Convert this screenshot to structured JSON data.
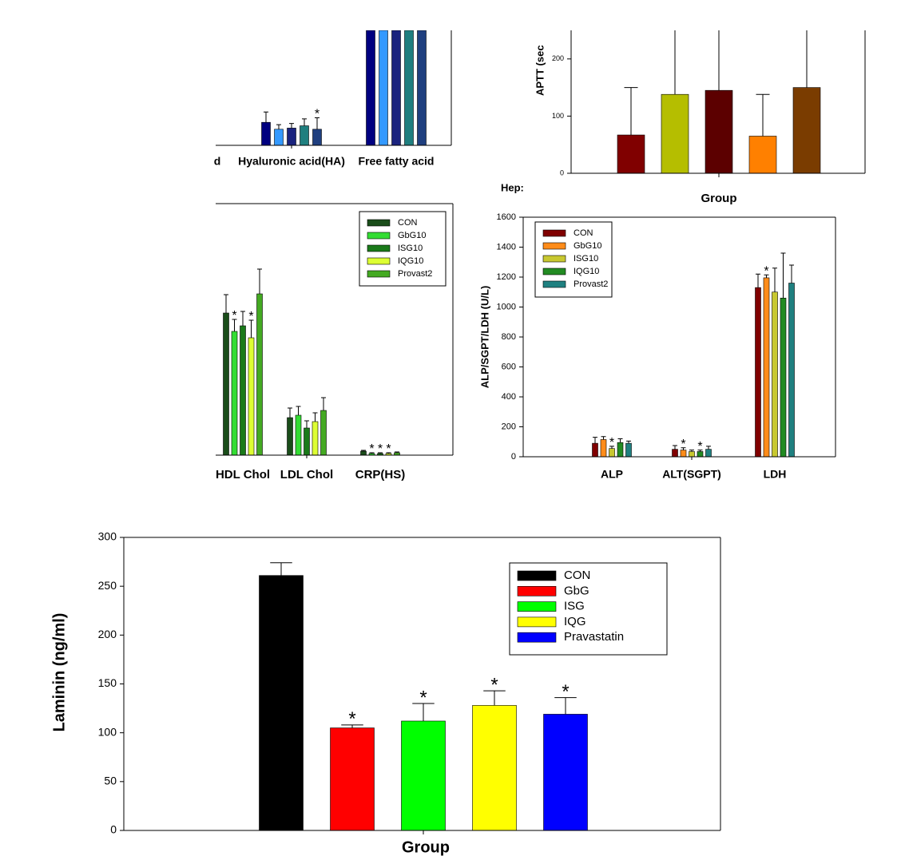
{
  "chart_data": [
    {
      "type": "bar",
      "categories": [
        "d",
        "Hyaluronic acid(HA)",
        "Free fatty acid"
      ],
      "ylim": [
        0,
        100
      ],
      "series": [
        {
          "color": "#000080",
          "values": [
            null,
            20,
            100
          ],
          "errors": [
            null,
            9,
            null
          ]
        },
        {
          "color": "#3399ff",
          "values": [
            null,
            14,
            100
          ],
          "errors": [
            null,
            4,
            null
          ]
        },
        {
          "color": "#1a237e",
          "values": [
            null,
            15,
            100
          ],
          "errors": [
            null,
            4,
            null
          ]
        },
        {
          "color": "#1f7f7f",
          "values": [
            null,
            17,
            100
          ],
          "errors": [
            null,
            6,
            null
          ]
        },
        {
          "color": "#1f3f7f",
          "values": [
            null,
            14,
            100
          ],
          "errors": [
            null,
            10,
            null
          ],
          "labels": [
            null,
            "*",
            null
          ]
        }
      ]
    },
    {
      "type": "bar",
      "categories": [
        null
      ],
      "y_label": "APTT (sec",
      "x_label": "Group",
      "caption": "Hep:",
      "ylim": [
        0,
        250
      ],
      "yticks": [
        0,
        100,
        200
      ],
      "series": [
        {
          "color": "#800000",
          "values": [
            67
          ],
          "errors": [
            83
          ]
        },
        {
          "color": "#b5be00",
          "values": [
            138
          ],
          "errors": [
            140
          ]
        },
        {
          "color": "#5c0000",
          "values": [
            145
          ],
          "errors": [
            130
          ]
        },
        {
          "color": "#ff8000",
          "values": [
            65
          ],
          "errors": [
            73
          ]
        },
        {
          "color": "#7a3c00",
          "values": [
            150
          ],
          "errors": [
            120
          ]
        }
      ]
    },
    {
      "type": "bar",
      "categories": [
        "HDL Chol",
        "LDL Chol",
        "CRP(HS)"
      ],
      "ylim": [
        0,
        315
      ],
      "legend": true,
      "series": [
        {
          "name": "CON",
          "color": "#1a4d1a",
          "values": [
            178,
            47,
            5
          ],
          "errors": [
            23,
            12,
            1
          ]
        },
        {
          "name": "GbG10",
          "color": "#33dd33",
          "values": [
            155,
            50,
            2
          ],
          "errors": [
            15,
            11,
            1
          ],
          "labels": [
            "*",
            null,
            "*"
          ]
        },
        {
          "name": "ISG10",
          "color": "#1a7a1a",
          "values": [
            162,
            34,
            2
          ],
          "errors": [
            18,
            9,
            1
          ],
          "labels": [
            null,
            null,
            "*"
          ]
        },
        {
          "name": "IQG10",
          "color": "#ddff33",
          "values": [
            147,
            42,
            2
          ],
          "errors": [
            22,
            11,
            1
          ],
          "labels": [
            "*",
            null,
            "*"
          ]
        },
        {
          "name": "Provast2",
          "color": "#44aa22",
          "values": [
            202,
            56,
            3
          ],
          "errors": [
            31,
            16,
            1
          ]
        }
      ]
    },
    {
      "type": "bar",
      "categories": [
        "ALP",
        "ALT(SGPT)",
        "LDH"
      ],
      "y_label": "ALP/SGPT/LDH (U/L)",
      "legend": true,
      "ylim": [
        0,
        1600
      ],
      "yticks": [
        0,
        200,
        400,
        600,
        800,
        1000,
        1200,
        1400,
        1600
      ],
      "series": [
        {
          "name": "CON",
          "color": "#800000",
          "values": [
            90,
            50,
            1130
          ],
          "errors": [
            40,
            25,
            90
          ]
        },
        {
          "name": "GbG10",
          "color": "#ff8c1a",
          "values": [
            115,
            45,
            1195
          ],
          "errors": [
            20,
            15,
            20
          ],
          "labels": [
            null,
            "*",
            "*"
          ]
        },
        {
          "name": "ISG10",
          "color": "#c8c830",
          "values": [
            55,
            35,
            1100
          ],
          "errors": [
            15,
            10,
            160
          ],
          "labels": [
            "*",
            null,
            null
          ]
        },
        {
          "name": "IQG10",
          "color": "#228b22",
          "values": [
            95,
            35,
            1060
          ],
          "errors": [
            25,
            10,
            300
          ],
          "labels": [
            null,
            "*",
            null
          ]
        },
        {
          "name": "Provast2",
          "color": "#1f8080",
          "values": [
            90,
            50,
            1160
          ],
          "errors": [
            15,
            20,
            120
          ]
        }
      ]
    },
    {
      "type": "bar",
      "categories": [
        null
      ],
      "y_label": "Laminin (ng/ml)",
      "x_label": "Group",
      "legend": true,
      "ylim": [
        0,
        300
      ],
      "yticks": [
        0,
        50,
        100,
        150,
        200,
        250,
        300
      ],
      "series": [
        {
          "name": "CON",
          "color": "#000000",
          "values": [
            261
          ],
          "errors": [
            13
          ]
        },
        {
          "name": "GbG",
          "color": "#ff0000",
          "values": [
            105
          ],
          "errors": [
            3
          ],
          "labels": [
            "*"
          ]
        },
        {
          "name": "ISG",
          "color": "#00ff00",
          "values": [
            112
          ],
          "errors": [
            18
          ],
          "labels": [
            "*"
          ]
        },
        {
          "name": "IQG",
          "color": "#ffff00",
          "values": [
            128
          ],
          "errors": [
            15
          ],
          "labels": [
            "*"
          ]
        },
        {
          "name": "Pravastatin",
          "color": "#0000ff",
          "values": [
            119
          ],
          "errors": [
            17
          ],
          "labels": [
            "*"
          ]
        }
      ]
    }
  ]
}
